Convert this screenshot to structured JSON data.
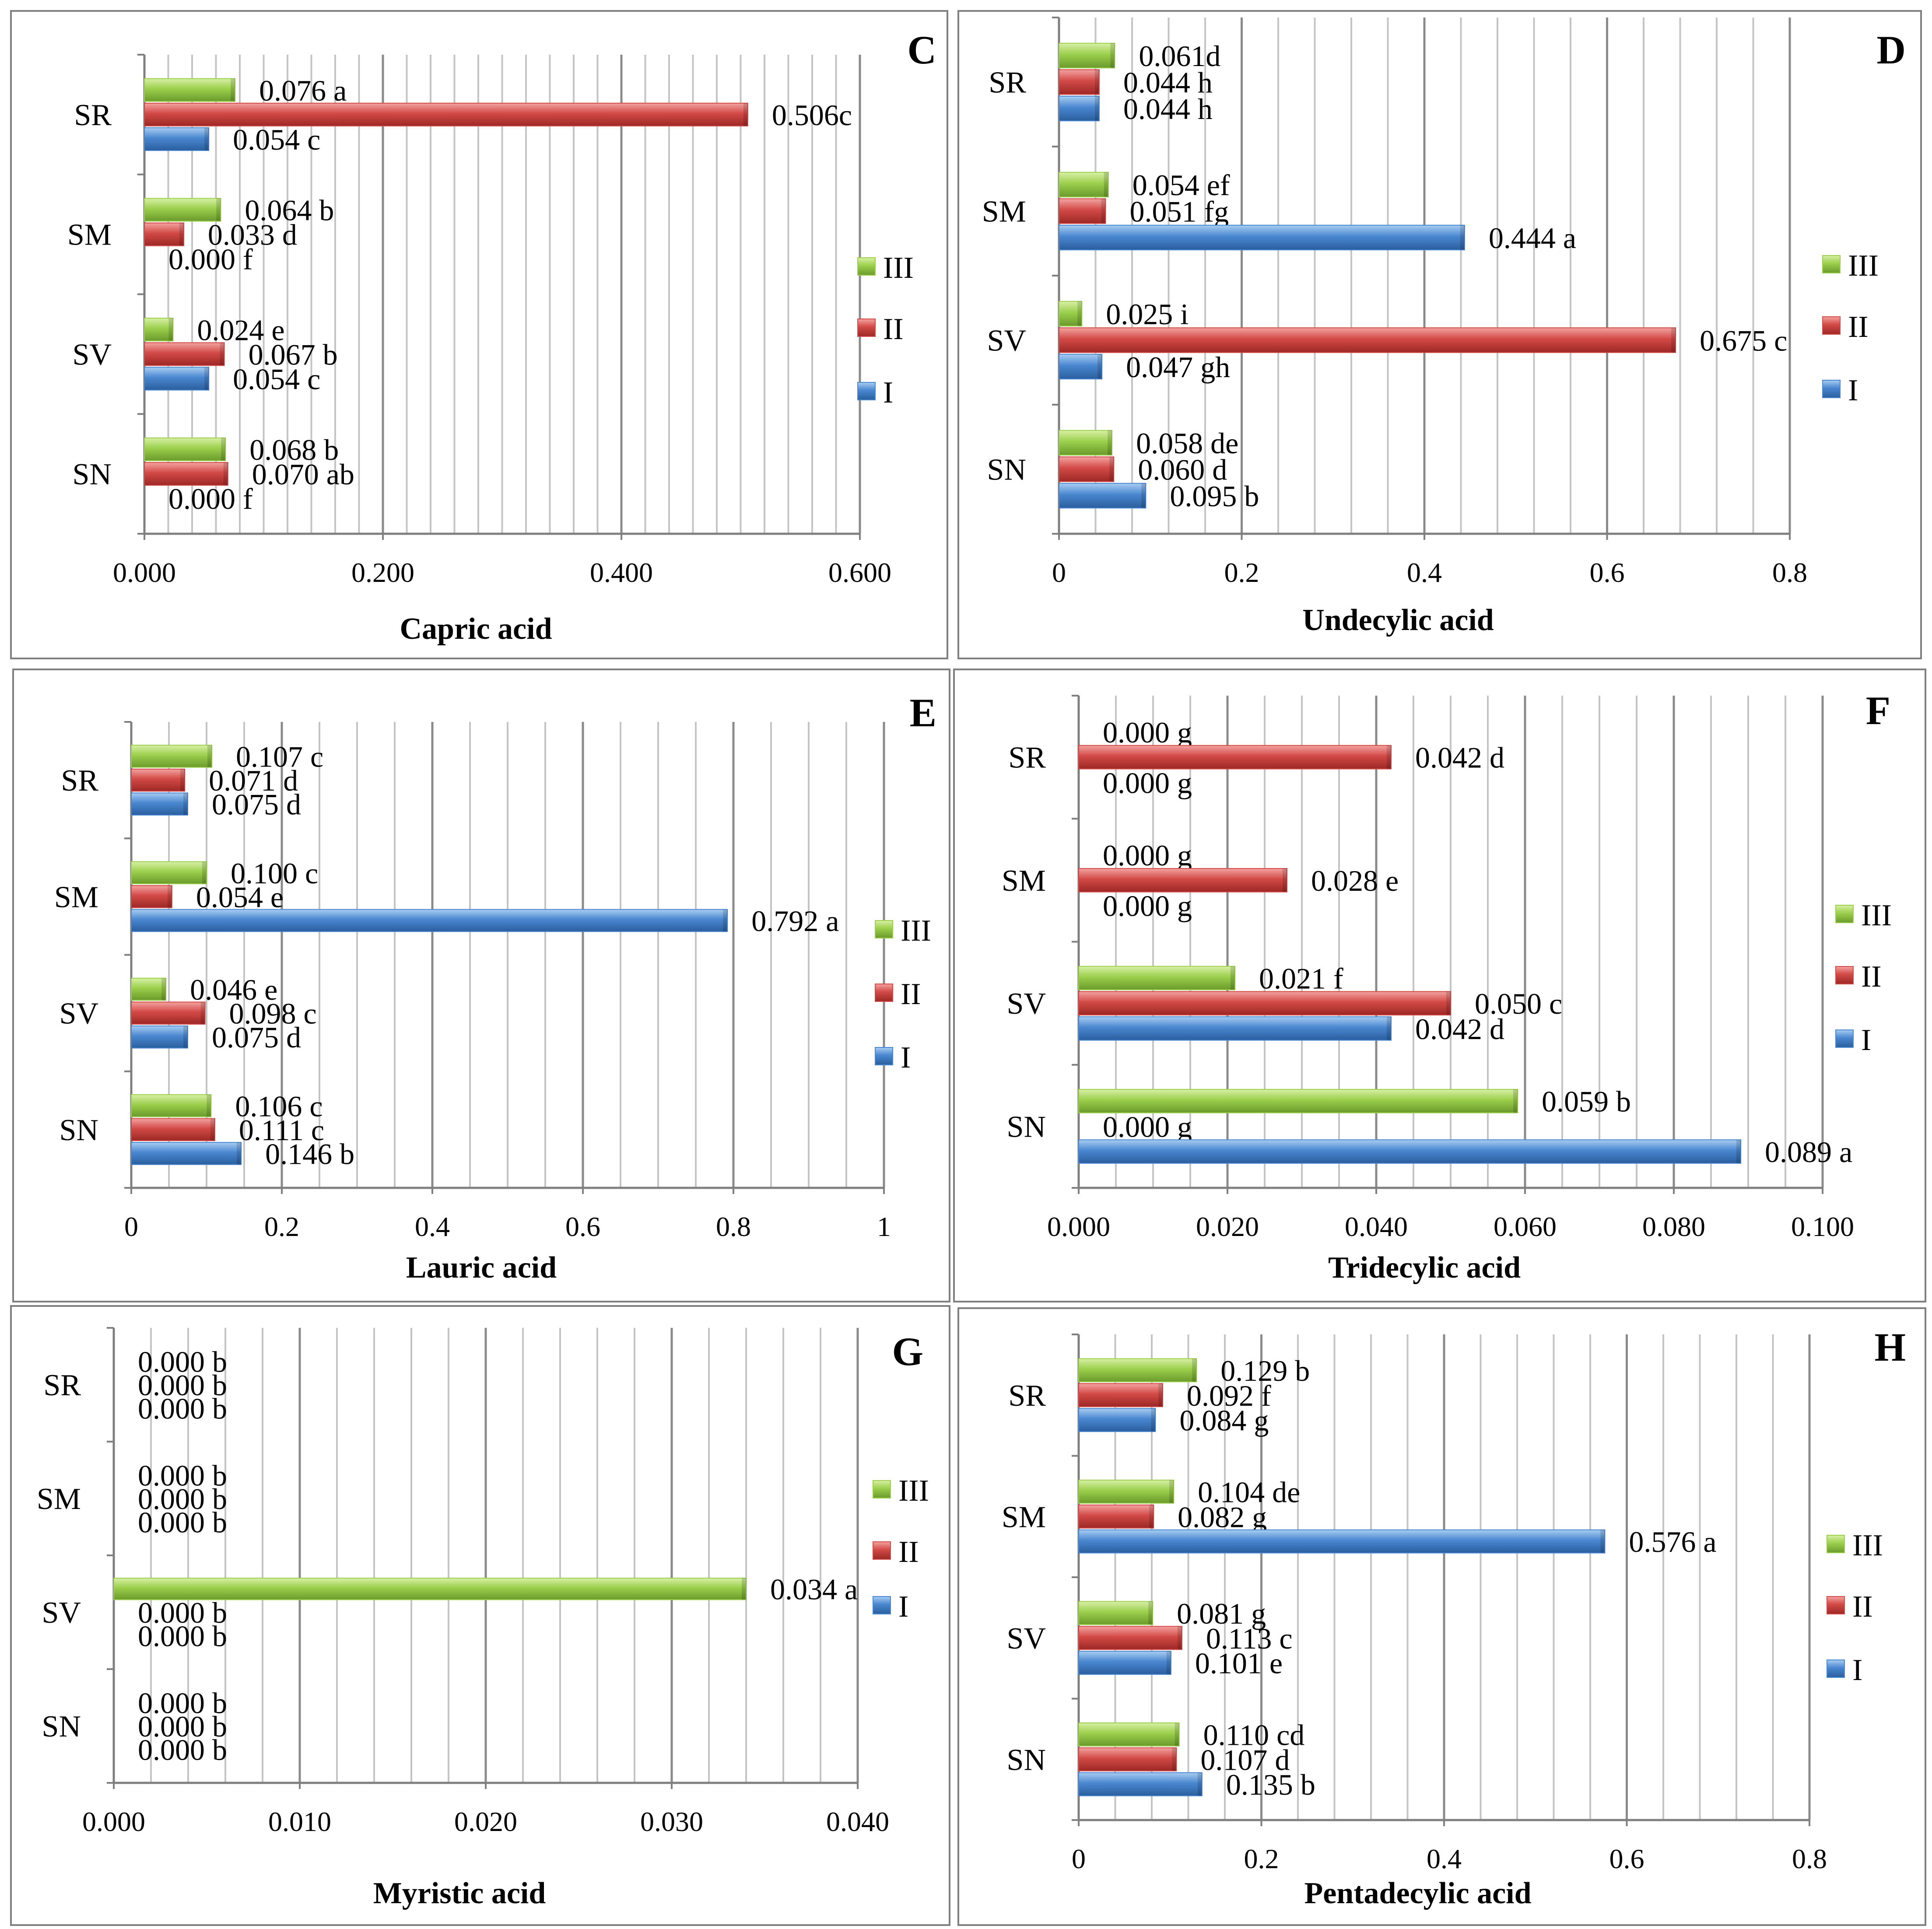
{
  "legend": [
    "III",
    "II",
    "I"
  ],
  "colors": {
    "I": "#4a87d0",
    "II": "#d24a47",
    "III": "#9bcf4c"
  },
  "chart_data": [
    {
      "type": "bar",
      "orientation": "horizontal",
      "panel": "C",
      "xlabel": "Capric acid",
      "categories": [
        "SR",
        "SM",
        "SV",
        "SN"
      ],
      "xlim": [
        0,
        0.6
      ],
      "ticks": [
        "0.000",
        "0.200",
        "0.400",
        "0.600"
      ],
      "series": [
        {
          "name": "III",
          "values": [
            0.076,
            0.064,
            0.024,
            0.068
          ],
          "labels": [
            "0.076 a",
            "0.064 b",
            "0.024 e",
            "0.068 b"
          ]
        },
        {
          "name": "II",
          "values": [
            0.506,
            0.033,
            0.067,
            0.07
          ],
          "labels": [
            "0.506c",
            "0.033 d",
            "0.067 b",
            "0.070 ab"
          ]
        },
        {
          "name": "I",
          "values": [
            0.054,
            0.0,
            0.054,
            0.0
          ],
          "labels": [
            "0.054 c",
            "0.000 f",
            "0.054 c",
            "0.000 f"
          ]
        }
      ]
    },
    {
      "type": "bar",
      "orientation": "horizontal",
      "panel": "D",
      "xlabel": "Undecylic acid",
      "categories": [
        "SR",
        "SM",
        "SV",
        "SN"
      ],
      "xlim": [
        0,
        0.8
      ],
      "ticks": [
        "0",
        "0.2",
        "0.4",
        "0.6",
        "0.8"
      ],
      "series": [
        {
          "name": "III",
          "values": [
            0.061,
            0.054,
            0.025,
            0.058
          ],
          "labels": [
            "0.061d",
            "0.054 ef",
            "0.025 i",
            "0.058 de"
          ]
        },
        {
          "name": "II",
          "values": [
            0.044,
            0.051,
            0.675,
            0.06
          ],
          "labels": [
            "0.044 h",
            "0.051 fg",
            "0.675 c",
            "0.060 d"
          ]
        },
        {
          "name": "I",
          "values": [
            0.044,
            0.444,
            0.047,
            0.095
          ],
          "labels": [
            "0.044 h",
            "0.444 a",
            "0.047 gh",
            "0.095 b"
          ]
        }
      ]
    },
    {
      "type": "bar",
      "orientation": "horizontal",
      "panel": "E",
      "xlabel": "Lauric acid",
      "categories": [
        "SR",
        "SM",
        "SV",
        "SN"
      ],
      "xlim": [
        0,
        1
      ],
      "ticks": [
        "0",
        "0.2",
        "0.4",
        "0.6",
        "0.8",
        "1"
      ],
      "series": [
        {
          "name": "III",
          "values": [
            0.107,
            0.1,
            0.046,
            0.106
          ],
          "labels": [
            "0.107 c",
            "0.100 c",
            "0.046 e",
            "0.106 c"
          ]
        },
        {
          "name": "II",
          "values": [
            0.071,
            0.054,
            0.098,
            0.111
          ],
          "labels": [
            "0.071 d",
            "0.054 e",
            "0.098 c",
            "0.111 c"
          ]
        },
        {
          "name": "I",
          "values": [
            0.075,
            0.792,
            0.075,
            0.146
          ],
          "labels": [
            "0.075 d",
            "0.792 a",
            "0.075 d",
            "0.146 b"
          ]
        }
      ]
    },
    {
      "type": "bar",
      "orientation": "horizontal",
      "panel": "F",
      "xlabel": "Tridecylic acid",
      "categories": [
        "SR",
        "SM",
        "SV",
        "SN"
      ],
      "xlim": [
        0,
        0.1
      ],
      "ticks": [
        "0.000",
        "0.020",
        "0.040",
        "0.060",
        "0.080",
        "0.100"
      ],
      "series": [
        {
          "name": "III",
          "values": [
            0.0,
            0.0,
            0.021,
            0.059
          ],
          "labels": [
            "0.000 g",
            "0.000 g",
            "0.021 f",
            "0.059 b"
          ]
        },
        {
          "name": "II",
          "values": [
            0.042,
            0.028,
            0.05,
            0.0
          ],
          "labels": [
            "0.042 d",
            "0.028 e",
            "0.050 c",
            "0.000 g"
          ]
        },
        {
          "name": "I",
          "values": [
            0.0,
            0.0,
            0.042,
            0.089
          ],
          "labels": [
            "0.000 g",
            "0.000 g",
            "0.042 d",
            "0.089 a"
          ]
        }
      ]
    },
    {
      "type": "bar",
      "orientation": "horizontal",
      "panel": "G",
      "xlabel": "Myristic acid",
      "categories": [
        "SR",
        "SM",
        "SV",
        "SN"
      ],
      "xlim": [
        0,
        0.04
      ],
      "ticks": [
        "0.000",
        "0.010",
        "0.020",
        "0.030",
        "0.040"
      ],
      "series": [
        {
          "name": "III",
          "values": [
            0.0,
            0.0,
            0.034,
            0.0
          ],
          "labels": [
            "0.000 b",
            "0.000 b",
            "0.034 a",
            "0.000 b"
          ]
        },
        {
          "name": "II",
          "values": [
            0.0,
            0.0,
            0.0,
            0.0
          ],
          "labels": [
            "0.000 b",
            "0.000 b",
            "0.000 b",
            "0.000 b"
          ]
        },
        {
          "name": "I",
          "values": [
            0.0,
            0.0,
            0.0,
            0.0
          ],
          "labels": [
            "0.000 b",
            "0.000 b",
            "0.000 b",
            "0.000 b"
          ]
        }
      ]
    },
    {
      "type": "bar",
      "orientation": "horizontal",
      "panel": "H",
      "xlabel": "Pentadecylic acid",
      "categories": [
        "SR",
        "SM",
        "SV",
        "SN"
      ],
      "xlim": [
        0,
        0.8
      ],
      "ticks": [
        "0",
        "0.2",
        "0.4",
        "0.6",
        "0.8"
      ],
      "series": [
        {
          "name": "III",
          "values": [
            0.129,
            0.104,
            0.081,
            0.11
          ],
          "labels": [
            "0.129 b",
            "0.104 de",
            "0.081 g",
            "0.110 cd"
          ]
        },
        {
          "name": "II",
          "values": [
            0.092,
            0.082,
            0.113,
            0.107
          ],
          "labels": [
            "0.092 f",
            "0.082 g",
            "0.113 c",
            "0.107 d"
          ]
        },
        {
          "name": "I",
          "values": [
            0.084,
            0.576,
            0.101,
            0.135
          ],
          "labels": [
            "0.084 g",
            "0.576 a",
            "0.101 e",
            "0.135 b"
          ]
        }
      ]
    }
  ]
}
